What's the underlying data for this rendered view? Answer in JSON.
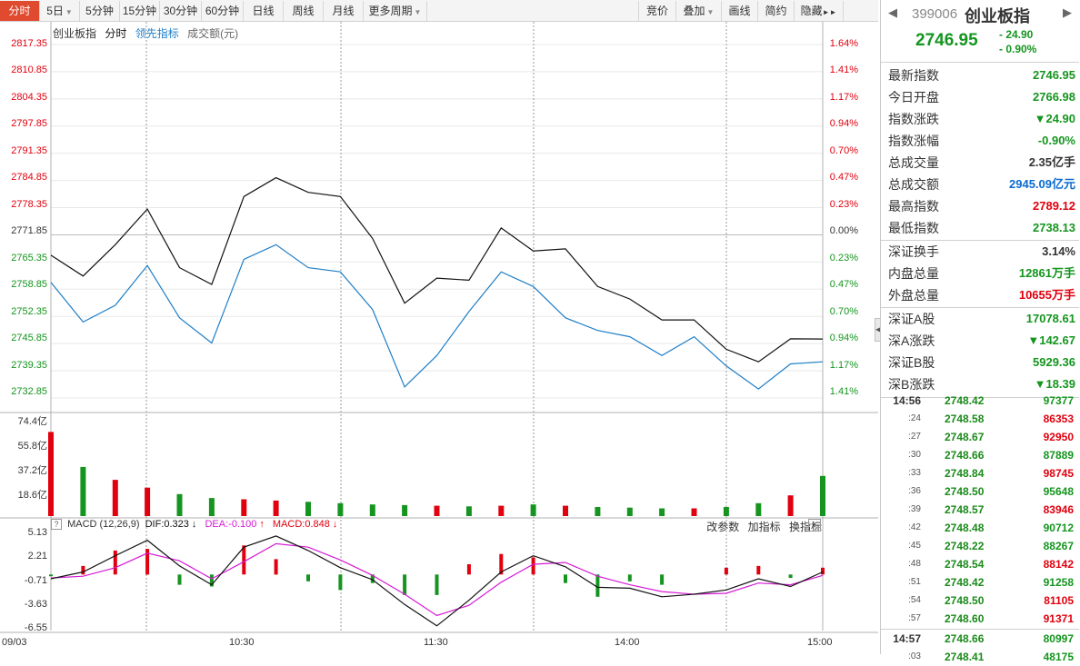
{
  "toolbar": {
    "left": [
      {
        "label": "分时",
        "arrow": false
      },
      {
        "label": "5日",
        "arrow": true
      },
      {
        "label": "5分钟",
        "arrow": false
      },
      {
        "label": "15分钟",
        "arrow": false
      },
      {
        "label": "30分钟",
        "arrow": false
      },
      {
        "label": "60分钟",
        "arrow": false
      },
      {
        "label": "日线",
        "arrow": false
      },
      {
        "label": "周线",
        "arrow": false
      },
      {
        "label": "月线",
        "arrow": false
      },
      {
        "label": "更多周期",
        "arrow": true
      }
    ],
    "right": [
      {
        "label": "竞价",
        "arrow": false
      },
      {
        "label": "叠加",
        "arrow": true
      },
      {
        "label": "画线",
        "arrow": false
      },
      {
        "label": "简约",
        "arrow": false
      },
      {
        "label": "隐藏",
        "arrow": false
      }
    ],
    "hide_arrows": "►►"
  },
  "chart_head": {
    "name": "创业板指",
    "mode": "分时",
    "indicator": "领先指标",
    "volume_label": "成交额(元)"
  },
  "price_axis": [
    "2817.35",
    "2810.85",
    "2804.35",
    "2797.85",
    "2791.35",
    "2784.85",
    "2778.35",
    "2771.85",
    "2765.35",
    "2758.85",
    "2752.35",
    "2745.85",
    "2739.35",
    "2732.85"
  ],
  "pct_axis": [
    "1.64%",
    "1.41%",
    "1.17%",
    "0.94%",
    "0.70%",
    "0.47%",
    "0.23%",
    "0.00%",
    "0.23%",
    "0.47%",
    "0.70%",
    "0.94%",
    "1.17%",
    "1.41%"
  ],
  "volume_axis": [
    "74.4亿",
    "55.8亿",
    "37.2亿",
    "18.6亿"
  ],
  "macd_head": {
    "box": "?",
    "name": "MACD (12,26,9)",
    "dif": "DIF:0.323",
    "dif_arrow": "↓",
    "dea": "DEA:-0.100",
    "dea_arrow": "↑",
    "macd": "MACD:0.848",
    "macd_arrow": "↓"
  },
  "macd_buttons": [
    "改参数",
    "加指标",
    "换指标"
  ],
  "macd_close": "×",
  "macd_axis": [
    "5.13",
    "2.21",
    "-0.71",
    "-3.63",
    "-6.55"
  ],
  "x_axis": [
    "09/03",
    "10:30",
    "11:30",
    "14:00",
    "15:00"
  ],
  "colors": {
    "up": "#e0000e",
    "down": "#15951f",
    "price_line": "#111111",
    "lead_line": "#1f7fc7",
    "dea": "#d61ad6",
    "grid": "#9a9a9a"
  },
  "sidebar": {
    "code": "399006",
    "name": "创业板指",
    "price": "2746.95",
    "change": "- 24.90",
    "change_pct": "- 0.90%",
    "rows": [
      {
        "key": "最新指数",
        "value": "2746.95",
        "color": "green"
      },
      {
        "key": "今日开盘",
        "value": "2766.98",
        "color": "green"
      },
      {
        "key": "指数涨跌",
        "value": "▼24.90",
        "color": "green"
      },
      {
        "key": "指数涨幅",
        "value": "-0.90%",
        "color": "green"
      },
      {
        "key": "总成交量",
        "value": "2.35亿手",
        "color": "black"
      },
      {
        "key": "总成交额",
        "value": "2945.09亿元",
        "color": "blue"
      },
      {
        "key": "最高指数",
        "value": "2789.12",
        "color": "red"
      },
      {
        "key": "最低指数",
        "value": "2738.13",
        "color": "green"
      },
      {
        "key": "深证换手",
        "value": "3.14%",
        "color": "black"
      },
      {
        "key": "内盘总量",
        "value": "12861万手",
        "color": "green"
      },
      {
        "key": "外盘总量",
        "value": "10655万手",
        "color": "red"
      },
      {
        "key": "深证A股",
        "value": "17078.61",
        "color": "green"
      },
      {
        "key": "深A涨跌",
        "value": "▼142.67",
        "color": "green"
      },
      {
        "key": "深证B股",
        "value": "5929.36",
        "color": "green"
      },
      {
        "key": "深B涨跌",
        "value": "▼18.39",
        "color": "green"
      }
    ],
    "ticks": [
      {
        "time": "14:56",
        "price": "2748.42",
        "vol": "97377",
        "color": "green",
        "big": true
      },
      {
        "time": ":24",
        "price": "2748.58",
        "vol": "86353",
        "color": "red",
        "big": false
      },
      {
        "time": ":27",
        "price": "2748.67",
        "vol": "92950",
        "color": "red",
        "big": false
      },
      {
        "time": ":30",
        "price": "2748.66",
        "vol": "87889",
        "color": "green",
        "big": false
      },
      {
        "time": ":33",
        "price": "2748.84",
        "vol": "98745",
        "color": "red",
        "big": false
      },
      {
        "time": ":36",
        "price": "2748.50",
        "vol": "95648",
        "color": "green",
        "big": false
      },
      {
        "time": ":39",
        "price": "2748.57",
        "vol": "83946",
        "color": "red",
        "big": false
      },
      {
        "time": ":42",
        "price": "2748.48",
        "vol": "90712",
        "color": "green",
        "big": false
      },
      {
        "time": ":45",
        "price": "2748.22",
        "vol": "88267",
        "color": "green",
        "big": false
      },
      {
        "time": ":48",
        "price": "2748.54",
        "vol": "88142",
        "color": "red",
        "big": false
      },
      {
        "time": ":51",
        "price": "2748.42",
        "vol": "91258",
        "color": "green",
        "big": false
      },
      {
        "time": ":54",
        "price": "2748.50",
        "vol": "81105",
        "color": "red",
        "big": false
      },
      {
        "time": ":57",
        "price": "2748.60",
        "vol": "91371",
        "color": "red",
        "big": false
      },
      {
        "time": "14:57",
        "price": "2748.66",
        "vol": "80997",
        "color": "green",
        "big": true
      },
      {
        "time": ":03",
        "price": "2748.41",
        "vol": "48175",
        "color": "green",
        "big": false
      }
    ]
  },
  "chart_data": {
    "type": "line",
    "title": "创业板指",
    "price_series": {
      "name": "创业板指",
      "x": [
        "09:30",
        "09:40",
        "09:50",
        "10:00",
        "10:10",
        "10:20",
        "10:30",
        "10:40",
        "10:50",
        "11:00",
        "11:10",
        "11:20",
        "11:30",
        "13:10",
        "13:20",
        "13:30",
        "13:40",
        "13:50",
        "14:00",
        "14:10",
        "14:20",
        "14:30",
        "14:40",
        "14:50",
        "15:00"
      ],
      "values": [
        2766.98,
        2762.0,
        2769.5,
        2778.0,
        2764.0,
        2760.0,
        2781.0,
        2785.5,
        2782.0,
        2781.0,
        2771.0,
        2755.5,
        2761.5,
        2761.0,
        2773.5,
        2768.0,
        2768.5,
        2759.5,
        2756.5,
        2751.5,
        2751.5,
        2744.5,
        2741.5,
        2747.0,
        2746.95
      ]
    },
    "lead_series": {
      "name": "领先指标",
      "values": [
        2760.5,
        2751.0,
        2755.0,
        2764.5,
        2752.0,
        2746.0,
        2766.0,
        2769.5,
        2764.0,
        2763.0,
        2754.0,
        2735.5,
        2743.0,
        2753.5,
        2763.0,
        2759.5,
        2752.0,
        2749.0,
        2747.5,
        2743.0,
        2747.5,
        2740.5,
        2735.0,
        2741.0,
        2741.5
      ]
    },
    "volume": [
      65.0,
      38.0,
      28.0,
      22.0,
      17.0,
      14.0,
      13.0,
      12.0,
      11.0,
      10.0,
      9.0,
      8.5,
      8.0,
      7.5,
      8.0,
      9.0,
      8.0,
      7.0,
      6.5,
      6.0,
      6.0,
      7.0,
      10.0,
      16.0,
      31.0
    ],
    "macd": {
      "dif": [
        -0.5,
        0.3,
        2.2,
        4.0,
        1.0,
        -1.2,
        3.2,
        4.5,
        2.8,
        0.8,
        -0.6,
        -3.5,
        -6.0,
        -3.0,
        0.3,
        2.2,
        0.9,
        -1.5,
        -1.6,
        -2.6,
        -2.3,
        -1.8,
        -0.5,
        -1.4,
        0.3
      ],
      "dea": [
        -0.4,
        -0.2,
        0.8,
        2.5,
        1.6,
        -0.5,
        1.5,
        3.6,
        3.2,
        1.7,
        -0.1,
        -2.3,
        -4.8,
        -3.6,
        -0.9,
        1.2,
        1.4,
        -0.2,
        -1.2,
        -2.0,
        -2.3,
        -2.2,
        -1.0,
        -1.2,
        -0.1
      ]
    },
    "ylim": [
      2732.85,
      2817.35
    ],
    "volume_ylim": [
      0,
      74.4
    ],
    "macd_ylim": [
      -6.55,
      5.13
    ],
    "x_ticks": [
      "09/03",
      "10:30",
      "11:30",
      "14:00",
      "15:00"
    ]
  }
}
